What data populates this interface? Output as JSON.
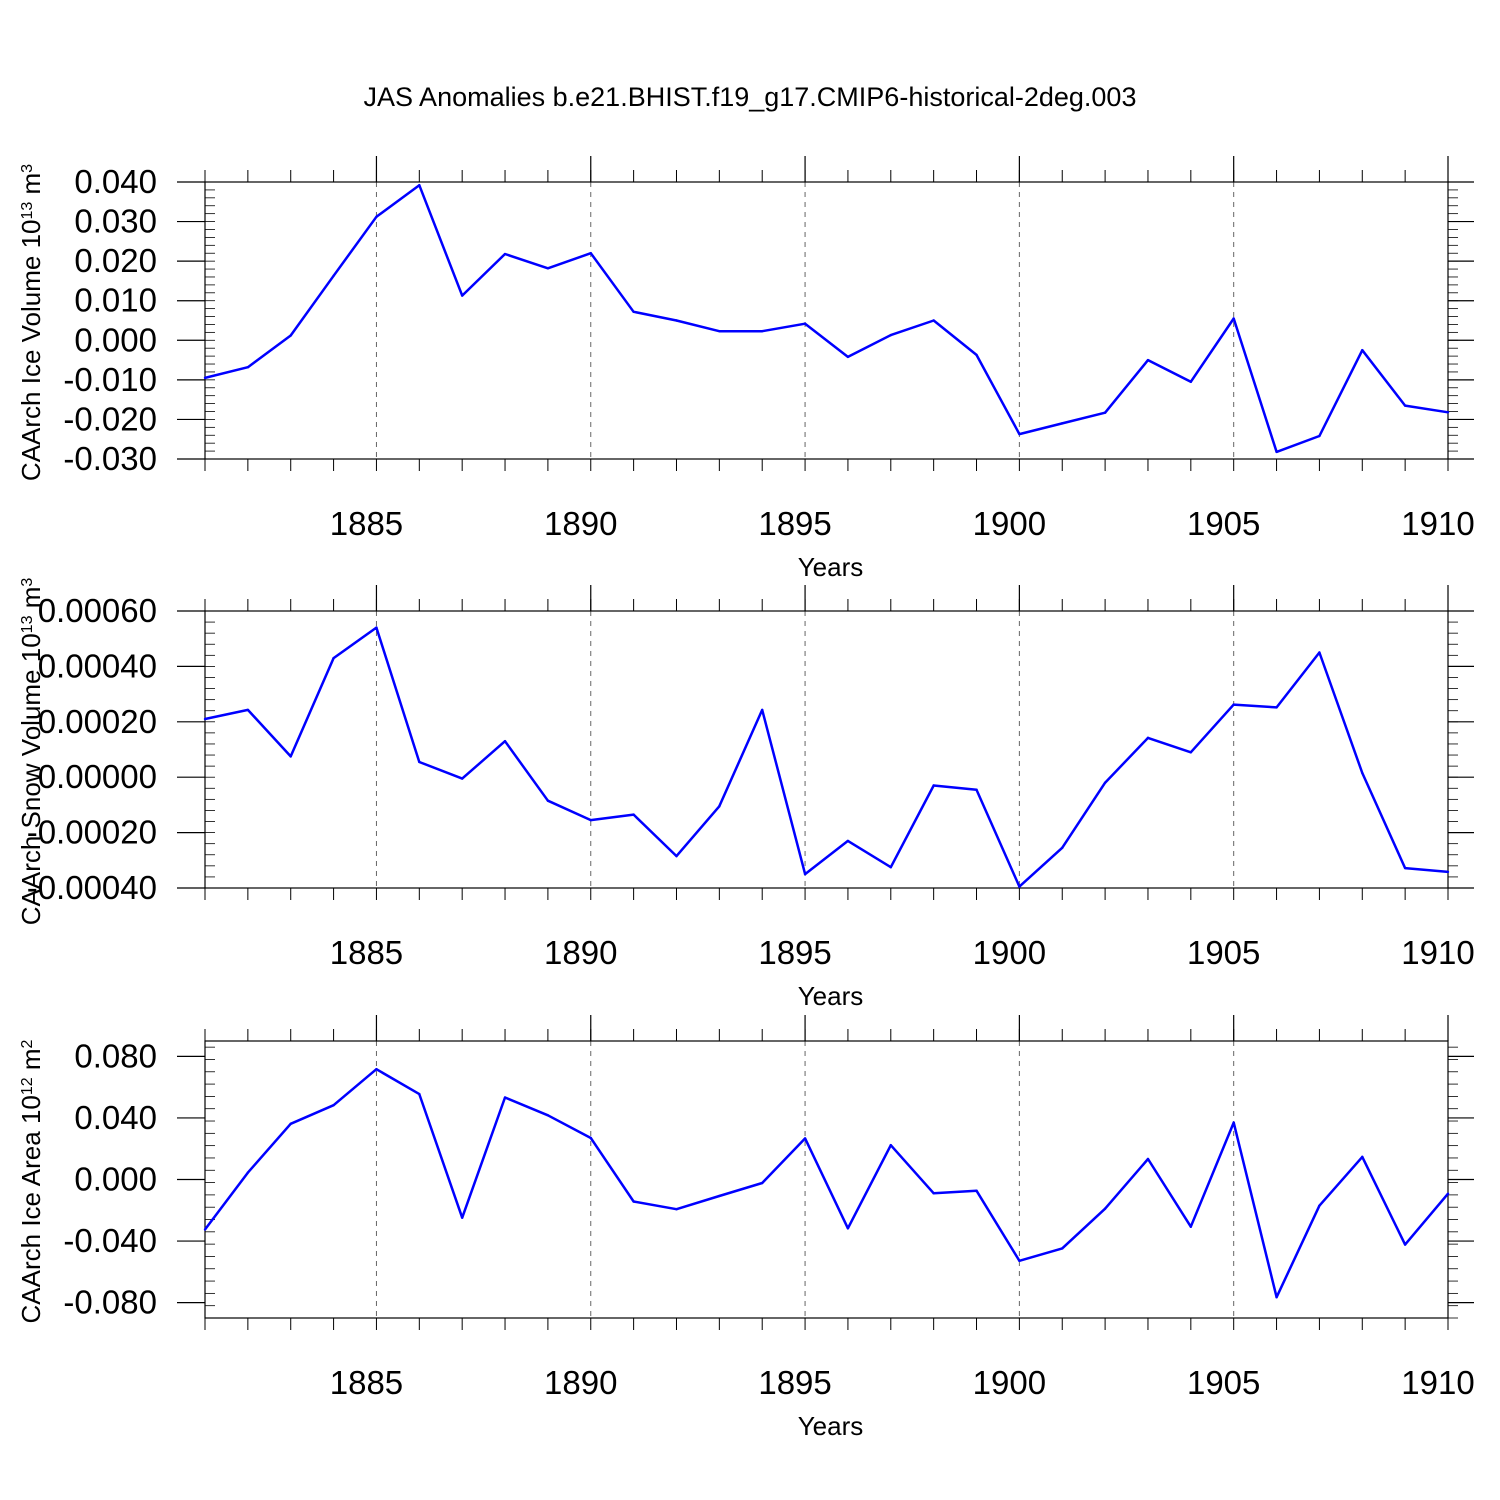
{
  "title": "JAS Anomalies b.e21.BHIST.f19_g17.CMIP6-historical-2deg.003",
  "colors": {
    "series": "#0000ff",
    "axis": "#000000",
    "grid": "#000000"
  },
  "chart_data": [
    {
      "type": "line",
      "xlabel": "Years",
      "ylabel": "CAArch Ice Volume 10",
      "ylabel_exp": "13",
      "ylabel_unit": " m",
      "ylabel_unit_exp": "3",
      "xlim": [
        1881,
        1910
      ],
      "ylim": [
        -0.03,
        0.04
      ],
      "xticks": [
        1885,
        1890,
        1895,
        1900,
        1905,
        1910
      ],
      "yticks": [
        -0.03,
        -0.02,
        -0.01,
        0.0,
        0.01,
        0.02,
        0.03,
        0.04
      ],
      "ytick_labels": [
        "-0.030",
        "-0.020",
        "-0.010",
        "0.000",
        "0.010",
        "0.020",
        "0.030",
        "0.040"
      ],
      "x": [
        1881,
        1882,
        1883,
        1884,
        1885,
        1886,
        1887,
        1888,
        1889,
        1890,
        1891,
        1892,
        1893,
        1894,
        1895,
        1896,
        1897,
        1898,
        1899,
        1900,
        1901,
        1902,
        1903,
        1904,
        1905,
        1906,
        1907,
        1908,
        1909,
        1910
      ],
      "values": [
        -0.0095,
        -0.0068,
        0.0012,
        0.0163,
        0.0312,
        0.0392,
        0.0113,
        0.0218,
        0.0182,
        0.022,
        0.0072,
        0.005,
        0.0023,
        0.0023,
        0.0042,
        -0.0042,
        0.0013,
        0.005,
        -0.0037,
        -0.0237,
        -0.021,
        -0.0183,
        -0.005,
        -0.0105,
        0.0055,
        -0.0282,
        -0.0242,
        -0.0025,
        -0.0165,
        -0.0182
      ]
    },
    {
      "type": "line",
      "xlabel": "Years",
      "ylabel": "CAArch Snow Volume 10",
      "ylabel_exp": "13",
      "ylabel_unit": " m",
      "ylabel_unit_exp": "3",
      "xlim": [
        1881,
        1910
      ],
      "ylim": [
        -0.0004,
        0.0006
      ],
      "xticks": [
        1885,
        1890,
        1895,
        1900,
        1905,
        1910
      ],
      "yticks": [
        -0.0004,
        -0.0002,
        0.0,
        0.0002,
        0.0004,
        0.0006
      ],
      "ytick_labels": [
        "-0.00040",
        "-0.00020",
        "0.00000",
        "0.00020",
        "0.00040",
        "0.00060"
      ],
      "x": [
        1881,
        1882,
        1883,
        1884,
        1885,
        1886,
        1887,
        1888,
        1889,
        1890,
        1891,
        1892,
        1893,
        1894,
        1895,
        1896,
        1897,
        1898,
        1899,
        1900,
        1901,
        1902,
        1903,
        1904,
        1905,
        1906,
        1907,
        1908,
        1909,
        1910
      ],
      "values": [
        0.00021,
        0.000243,
        7.5e-05,
        0.00043,
        0.00054,
        5.5e-05,
        -5e-06,
        0.00013,
        -8.5e-05,
        -0.000155,
        -0.000135,
        -0.000285,
        -0.000105,
        0.000243,
        -0.00035,
        -0.00023,
        -0.000325,
        -3e-05,
        -4.5e-05,
        -0.000395,
        -0.000255,
        -2e-05,
        0.000142,
        9e-05,
        0.000262,
        0.000252,
        0.00045,
        1.5e-05,
        -0.000328,
        -0.000342
      ]
    },
    {
      "type": "line",
      "xlabel": "Years",
      "ylabel": "CAArch Ice Area 10",
      "ylabel_exp": "12",
      "ylabel_unit": " m",
      "ylabel_unit_exp": "2",
      "xlim": [
        1881,
        1910
      ],
      "ylim": [
        -0.09,
        0.09
      ],
      "xticks": [
        1885,
        1890,
        1895,
        1900,
        1905,
        1910
      ],
      "yticks": [
        -0.08,
        -0.04,
        0.0,
        0.04,
        0.08
      ],
      "ytick_labels": [
        "-0.080",
        "-0.040",
        "0.000",
        "0.040",
        "0.080"
      ],
      "x": [
        1881,
        1882,
        1883,
        1884,
        1885,
        1886,
        1887,
        1888,
        1889,
        1890,
        1891,
        1892,
        1893,
        1894,
        1895,
        1896,
        1897,
        1898,
        1899,
        1900,
        1901,
        1902,
        1903,
        1904,
        1905,
        1906,
        1907,
        1908,
        1909,
        1910
      ],
      "values": [
        -0.0325,
        0.0045,
        0.0362,
        0.0483,
        0.0717,
        0.0555,
        -0.0248,
        0.0533,
        0.0417,
        0.027,
        -0.0143,
        -0.0193,
        -0.0107,
        -0.0023,
        0.0267,
        -0.0317,
        0.0223,
        -0.009,
        -0.0073,
        -0.0528,
        -0.0448,
        -0.019,
        0.0133,
        -0.0307,
        0.037,
        -0.0765,
        -0.017,
        0.0147,
        -0.0423,
        -0.0092
      ]
    }
  ]
}
